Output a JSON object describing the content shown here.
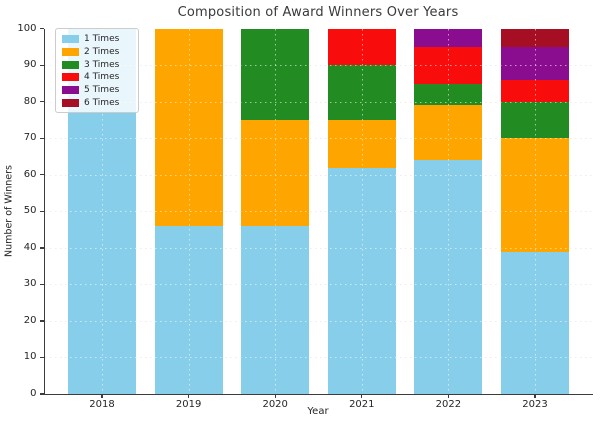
{
  "title": "Composition of Award Winners Over Years",
  "chart_data": {
    "type": "bar",
    "stacked": true,
    "title": "Composition of Award Winners Over Years",
    "xlabel": "Year",
    "ylabel": "Number of Winners",
    "categories": [
      "2018",
      "2019",
      "2020",
      "2021",
      "2022",
      "2023"
    ],
    "series": [
      {
        "name": "1 Times",
        "color": "#87CEEB",
        "values": [
          100,
          46,
          46,
          62,
          64,
          39
        ]
      },
      {
        "name": "2 Times",
        "color": "#FFA500",
        "values": [
          0,
          54,
          29,
          13,
          15,
          31
        ]
      },
      {
        "name": "3 Times",
        "color": "#228B22",
        "values": [
          0,
          0,
          25,
          15,
          6,
          10
        ]
      },
      {
        "name": "4 Times",
        "color": "#F80C0C",
        "values": [
          0,
          0,
          0,
          10,
          10,
          6
        ]
      },
      {
        "name": "5 Times",
        "color": "#8A0D8F",
        "values": [
          0,
          0,
          0,
          0,
          5,
          9
        ]
      },
      {
        "name": "6 Times",
        "color": "#A50E23",
        "values": [
          0,
          0,
          0,
          0,
          0,
          5
        ]
      }
    ],
    "ylim": [
      0,
      100
    ],
    "yticks": [
      0,
      10,
      20,
      30,
      40,
      50,
      60,
      70,
      80,
      90,
      100
    ],
    "grid": "dotted",
    "legend_position": "upper-left",
    "legend_labels": [
      "1 Times",
      "2 Times",
      "3 Times",
      "4 Times",
      "5 Times",
      "6 Times"
    ]
  }
}
